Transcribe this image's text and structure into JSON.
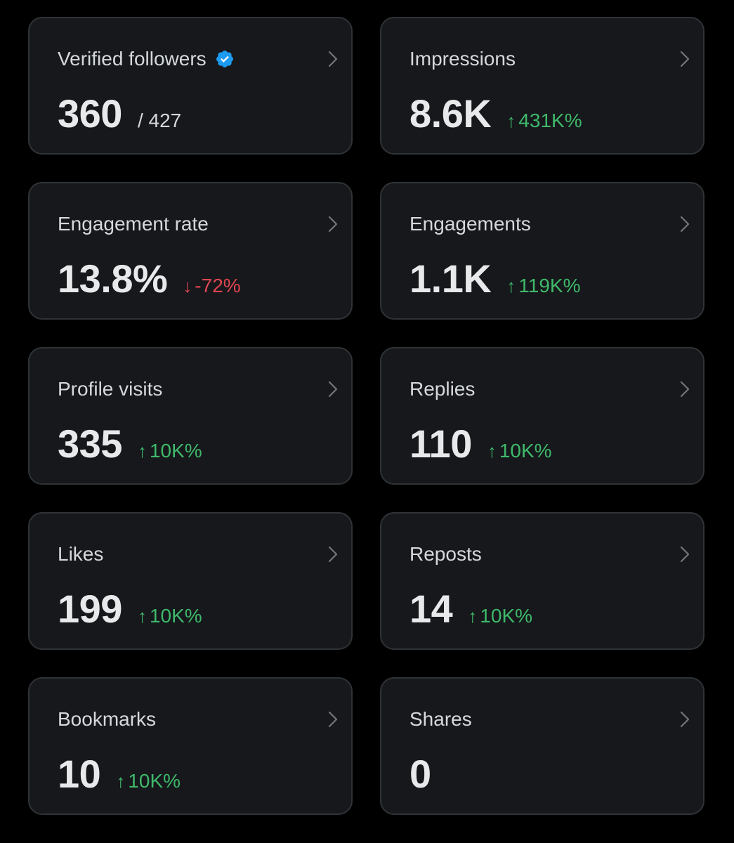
{
  "colors": {
    "background": "#000000",
    "card": "#16181c",
    "border": "#2f3336",
    "up": "#3fb96a",
    "down": "#e04551",
    "verified": "#1d9bf0"
  },
  "cards": [
    {
      "title": "Verified followers",
      "value": "360",
      "sub": "/ 427"
    },
    {
      "title": "Impressions",
      "value": "8.6K",
      "delta": "431K%",
      "direction": "up"
    },
    {
      "title": "Engagement rate",
      "value": "13.8%",
      "delta": "-72%",
      "direction": "down"
    },
    {
      "title": "Engagements",
      "value": "1.1K",
      "delta": "119K%",
      "direction": "up"
    },
    {
      "title": "Profile visits",
      "value": "335",
      "delta": "10K%",
      "direction": "up"
    },
    {
      "title": "Replies",
      "value": "110",
      "delta": "10K%",
      "direction": "up"
    },
    {
      "title": "Likes",
      "value": "199",
      "delta": "10K%",
      "direction": "up"
    },
    {
      "title": "Reposts",
      "value": "14",
      "delta": "10K%",
      "direction": "up"
    },
    {
      "title": "Bookmarks",
      "value": "10",
      "delta": "10K%",
      "direction": "up"
    },
    {
      "title": "Shares",
      "value": "0"
    }
  ],
  "arrows": {
    "up": "↑",
    "down": "↓"
  }
}
